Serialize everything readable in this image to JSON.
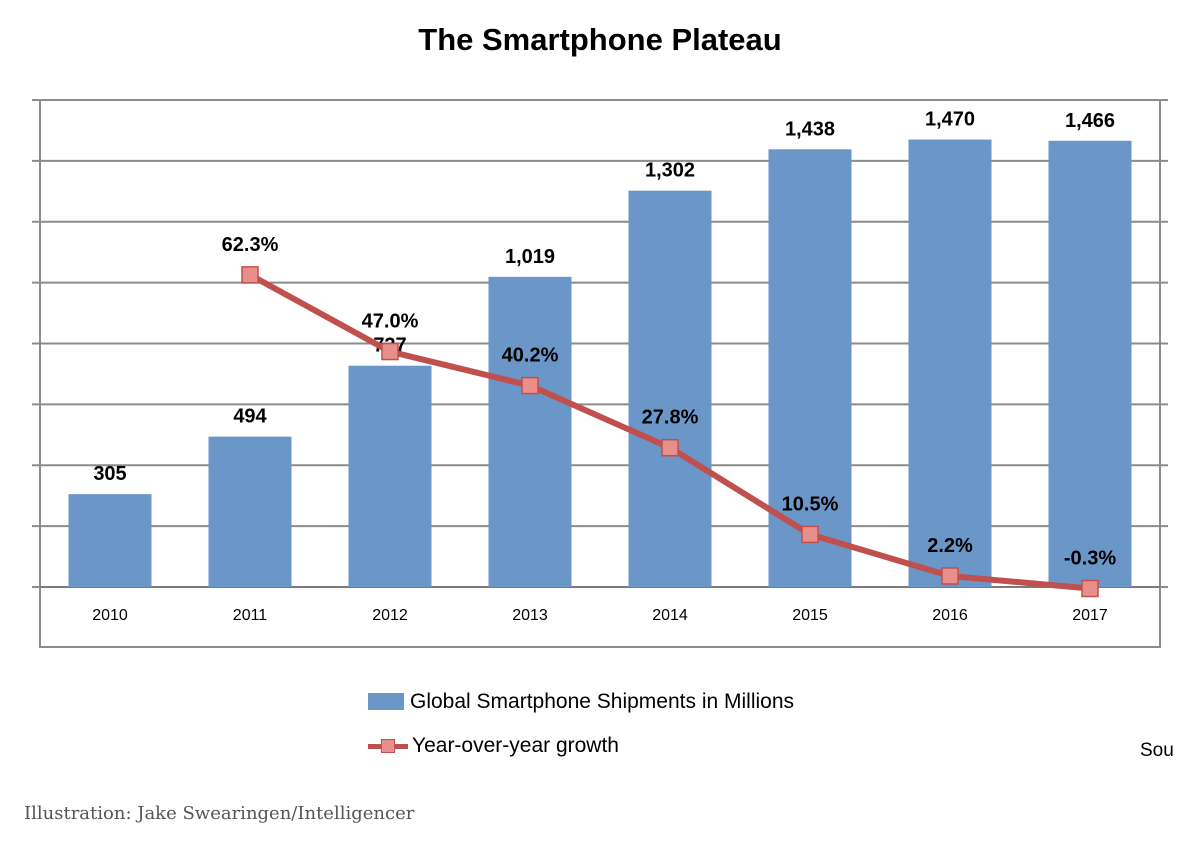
{
  "chart_data": {
    "type": "bar",
    "title": "The Smartphone Plateau",
    "categories": [
      "2010",
      "2011",
      "2012",
      "2013",
      "2014",
      "2015",
      "2016",
      "2017"
    ],
    "series": [
      {
        "name": "Global Smartphone Shipments in Millions",
        "type": "bar",
        "values": [
          305,
          494,
          727,
          1019,
          1302,
          1438,
          1470,
          1466
        ],
        "labels": [
          "305",
          "494",
          "727",
          "1,019",
          "1,302",
          "1,438",
          "1,470",
          "1,466"
        ],
        "color": "#6a96c8"
      },
      {
        "name": "Year-over-year growth",
        "type": "line",
        "values": [
          null,
          62.3,
          47.0,
          40.2,
          27.8,
          10.5,
          2.2,
          -0.3
        ],
        "labels": [
          "",
          "62.3%",
          "47.0%",
          "40.2%",
          "27.8%",
          "10.5%",
          "2.2%",
          "-0.3%"
        ],
        "color": "#c0504d",
        "marker_fill": "#e88f8c"
      }
    ],
    "ylim": [
      0,
      1600
    ],
    "y2lim": [
      0,
      100
    ],
    "grid": true,
    "legend": "bottom"
  },
  "source_text": "Sou",
  "credit": "Illustration: Jake Swearingen/Intelligencer"
}
